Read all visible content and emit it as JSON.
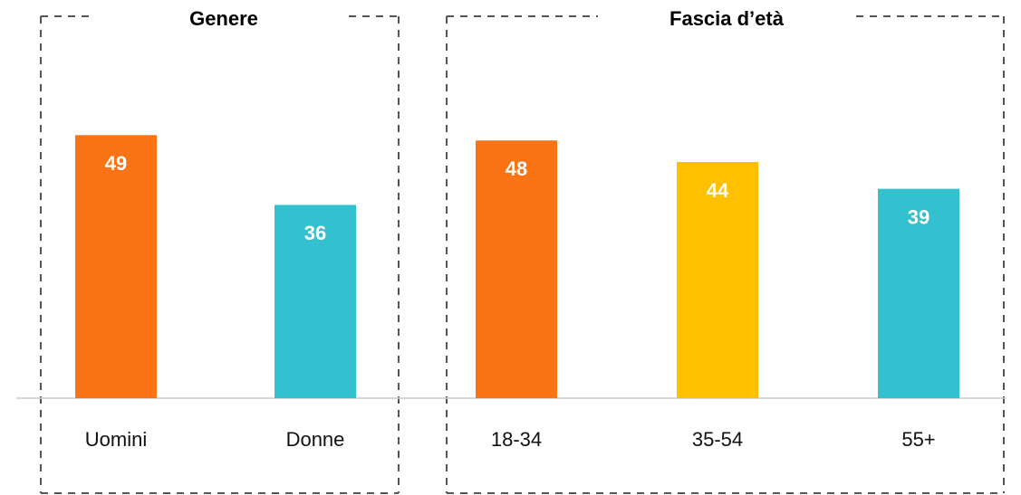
{
  "chart_data": [
    {
      "type": "bar",
      "title": "Genere",
      "categories": [
        "Uomini",
        "Donne"
      ],
      "values": [
        49,
        36
      ],
      "colors": [
        "#fa7314",
        "#33c0cf"
      ],
      "ylim": [
        0,
        74
      ]
    },
    {
      "type": "bar",
      "title": "Fascia d’età",
      "categories": [
        "18-34",
        "35-54",
        "55+"
      ],
      "values": [
        48,
        44,
        39
      ],
      "colors": [
        "#fa7314",
        "#ffc000",
        "#33c0cf"
      ],
      "ylim": [
        0,
        74
      ]
    }
  ]
}
